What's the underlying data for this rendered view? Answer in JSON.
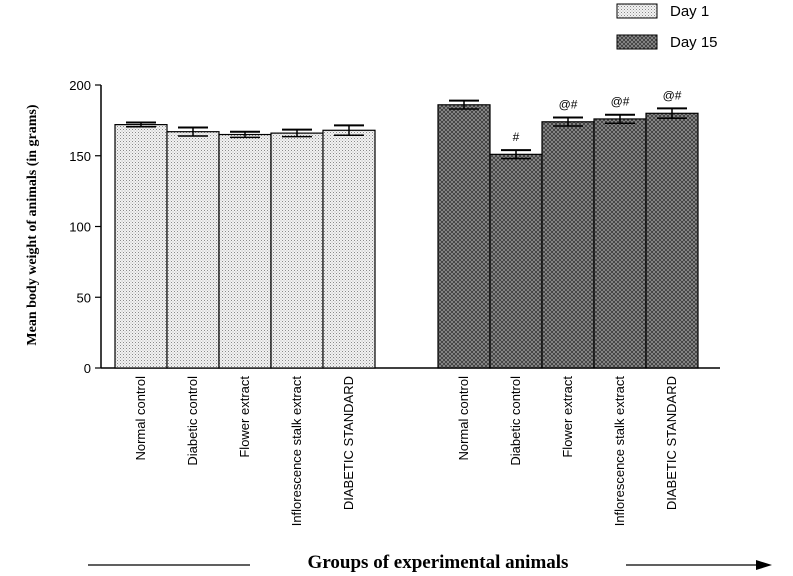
{
  "chart_data": {
    "type": "bar",
    "title": "",
    "ylabel": "Mean body weight of animals (in grams)",
    "xlabel": "Groups of experimental animals",
    "ylim": [
      0,
      200
    ],
    "yticks": [
      0,
      50,
      100,
      150,
      200
    ],
    "categories": [
      "Normal control",
      "Diabetic control",
      "Flower extract",
      "Inflorescence stalk  extract",
      "DIABETIC STANDARD"
    ],
    "legend_position": "top-right",
    "series": [
      {
        "name": "Day 1",
        "values": [
          172,
          167,
          165,
          166,
          168
        ],
        "errors": [
          1.5,
          3,
          2,
          2.5,
          3.5
        ],
        "annotations": [
          "",
          "",
          "",
          "",
          ""
        ]
      },
      {
        "name": "Day 15",
        "values": [
          186,
          151,
          174,
          176,
          180
        ],
        "errors": [
          3,
          3,
          3,
          3,
          3.5
        ],
        "annotations": [
          "",
          "#",
          "@#",
          "@#",
          "@#"
        ]
      }
    ]
  }
}
